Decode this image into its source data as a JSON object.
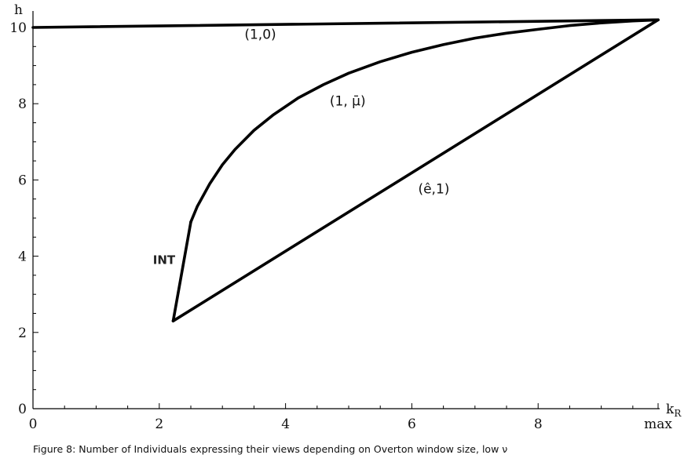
{
  "caption": "Figure 8: Number of Individuals expressing their views depending on Overton window size, low ν",
  "chart_data": {
    "type": "line",
    "xlabel": "kR",
    "ylabel": "h",
    "xlim": [
      0,
      9.9
    ],
    "ylim": [
      0,
      10.5
    ],
    "xticks": [
      {
        "value": 0,
        "label": "0"
      },
      {
        "value": 2,
        "label": "2"
      },
      {
        "value": 4,
        "label": "4"
      },
      {
        "value": 6,
        "label": "6"
      },
      {
        "value": 8,
        "label": "8"
      },
      {
        "value": 9.9,
        "label": "max"
      }
    ],
    "yticks": [
      {
        "value": 0,
        "label": "0"
      },
      {
        "value": 2,
        "label": "2"
      },
      {
        "value": 4,
        "label": "4"
      },
      {
        "value": 6,
        "label": "6"
      },
      {
        "value": 8,
        "label": "8"
      },
      {
        "value": 10,
        "label": "10"
      }
    ],
    "series": [
      {
        "name": "(1,0)",
        "x": [
          0,
          9.9
        ],
        "y": [
          10.0,
          10.2
        ]
      },
      {
        "name": "(1, μ̄)",
        "x": [
          2.5,
          2.6,
          2.8,
          3.0,
          3.2,
          3.5,
          3.8,
          4.2,
          4.6,
          5.0,
          5.5,
          6.0,
          6.5,
          7.0,
          7.5,
          8.0,
          8.5,
          9.0,
          9.5,
          9.9
        ],
        "y": [
          4.9,
          5.3,
          5.9,
          6.4,
          6.8,
          7.3,
          7.7,
          8.15,
          8.5,
          8.8,
          9.1,
          9.35,
          9.55,
          9.72,
          9.85,
          9.95,
          10.05,
          10.12,
          10.17,
          10.2
        ]
      },
      {
        "name": "INT",
        "x": [
          2.22,
          2.5
        ],
        "y": [
          2.3,
          4.9
        ]
      },
      {
        "name": "(ê,1)",
        "x": [
          2.22,
          9.9
        ],
        "y": [
          2.3,
          10.2
        ]
      }
    ],
    "annotations": [
      {
        "id": "a10",
        "text": "(1,0)",
        "x": 3.35,
        "y": 9.7
      },
      {
        "id": "amu",
        "text": "(1, μ̄)",
        "x": 4.7,
        "y": 7.95
      },
      {
        "id": "aint",
        "text": "INT",
        "x": 1.9,
        "y": 3.8
      },
      {
        "id": "ae1",
        "text": "(ê,1)",
        "x": 6.1,
        "y": 5.65
      }
    ]
  }
}
